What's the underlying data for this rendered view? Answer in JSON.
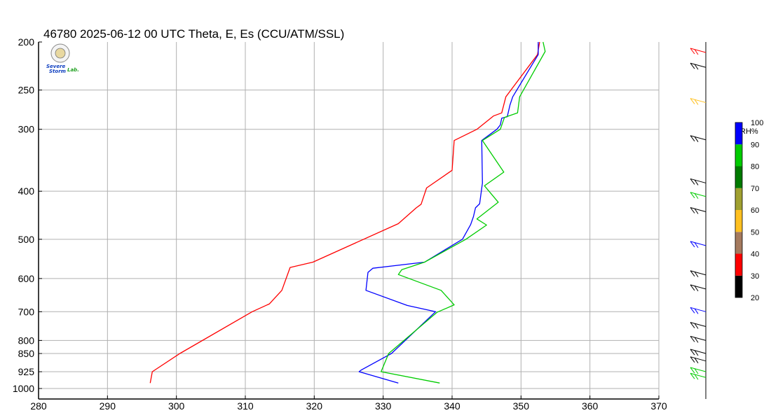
{
  "chart_data": {
    "type": "line",
    "title": "46780  2025-06-12 00 UTC  Theta, E, Es (CCU/ATM/SSL)",
    "xlim": [
      280,
      370
    ],
    "x_ticks": [
      "280",
      "290",
      "300",
      "310",
      "320",
      "330",
      "340",
      "350",
      "360",
      "370"
    ],
    "y_ticks": [
      "200",
      "250",
      "300",
      "400",
      "500",
      "600",
      "700",
      "800",
      "850",
      "925",
      "1000"
    ],
    "y_tick_values": [
      200,
      250,
      300,
      400,
      500,
      600,
      700,
      800,
      850,
      925,
      1000
    ],
    "y_scale": "log-pressure",
    "grid": true,
    "series": [
      {
        "color": "#ff0000",
        "points": [
          [
            296.2,
            975
          ],
          [
            296.5,
            925
          ],
          [
            300.5,
            850
          ],
          [
            311,
            700
          ],
          [
            313.5,
            675
          ],
          [
            315.3,
            634
          ],
          [
            316.5,
            570
          ],
          [
            319.8,
            556
          ],
          [
            332.2,
            465
          ],
          [
            334.8,
            432
          ],
          [
            335.5,
            425
          ],
          [
            336.3,
            394
          ],
          [
            340,
            363
          ],
          [
            340.3,
            316
          ],
          [
            343.6,
            300
          ],
          [
            346,
            282
          ],
          [
            347.2,
            278
          ],
          [
            347.8,
            258
          ],
          [
            352.4,
            212
          ],
          [
            352.7,
            200
          ]
        ]
      },
      {
        "color": "#0000ff",
        "points": [
          [
            332.2,
            975
          ],
          [
            326.5,
            925
          ],
          [
            326.8,
            918
          ],
          [
            331.2,
            850
          ],
          [
            337.6,
            700
          ],
          [
            333.5,
            680
          ],
          [
            327.5,
            634
          ],
          [
            327.8,
            583
          ],
          [
            328.5,
            572
          ],
          [
            336,
            556
          ],
          [
            341.5,
            500
          ],
          [
            342.7,
            467
          ],
          [
            343.1,
            450
          ],
          [
            343.4,
            432
          ],
          [
            344,
            424
          ],
          [
            344.4,
            385
          ],
          [
            344.3,
            316
          ],
          [
            346.5,
            300
          ],
          [
            347,
            294
          ],
          [
            347.2,
            285
          ],
          [
            348,
            283
          ],
          [
            348.4,
            268
          ],
          [
            348.8,
            258
          ],
          [
            352.5,
            212
          ],
          [
            352.5,
            200
          ]
        ]
      },
      {
        "color": "#00cc00",
        "points": [
          [
            338.2,
            975
          ],
          [
            329.7,
            925
          ],
          [
            330.8,
            850
          ],
          [
            337.8,
            702
          ],
          [
            340.3,
            678
          ],
          [
            338.4,
            634
          ],
          [
            332.2,
            589
          ],
          [
            332.7,
            576
          ],
          [
            336,
            556
          ],
          [
            342,
            500
          ],
          [
            345,
            468
          ],
          [
            343.6,
            455
          ],
          [
            346.7,
            421
          ],
          [
            344.7,
            390
          ],
          [
            347.5,
            366
          ],
          [
            344.4,
            316
          ],
          [
            347,
            300
          ],
          [
            347.6,
            284
          ],
          [
            349.5,
            278
          ],
          [
            349.8,
            258
          ],
          [
            353.5,
            209
          ],
          [
            353.2,
            200
          ]
        ]
      }
    ]
  },
  "logo": {
    "line1": "Severe",
    "line2": "Storm",
    "line3": "Lab."
  },
  "colorbar": {
    "label": "RH%",
    "ticks": [
      "20",
      "30",
      "40",
      "50",
      "60",
      "70",
      "80",
      "90",
      "100"
    ],
    "colors": [
      "#000000",
      "#ff0000",
      "#a57a5e",
      "#ffc020",
      "#a0a030",
      "#007a00",
      "#00cc00",
      "#0000ff"
    ]
  },
  "wind_barbs": [
    {
      "pressure": 210,
      "color": "#ff0000"
    },
    {
      "pressure": 225,
      "color": "#000000"
    },
    {
      "pressure": 265,
      "color": "#ffc020"
    },
    {
      "pressure": 315,
      "color": "#000000"
    },
    {
      "pressure": 385,
      "color": "#000000"
    },
    {
      "pressure": 410,
      "color": "#00cc00"
    },
    {
      "pressure": 440,
      "color": "#000000"
    },
    {
      "pressure": 515,
      "color": "#0000ff"
    },
    {
      "pressure": 590,
      "color": "#000000"
    },
    {
      "pressure": 630,
      "color": "#000000"
    },
    {
      "pressure": 700,
      "color": "#0000ff"
    },
    {
      "pressure": 750,
      "color": "#000000"
    },
    {
      "pressure": 800,
      "color": "#000000"
    },
    {
      "pressure": 850,
      "color": "#000000"
    },
    {
      "pressure": 880,
      "color": "#000000"
    },
    {
      "pressure": 925,
      "color": "#00cc00"
    },
    {
      "pressure": 950,
      "color": "#00cc00"
    }
  ]
}
